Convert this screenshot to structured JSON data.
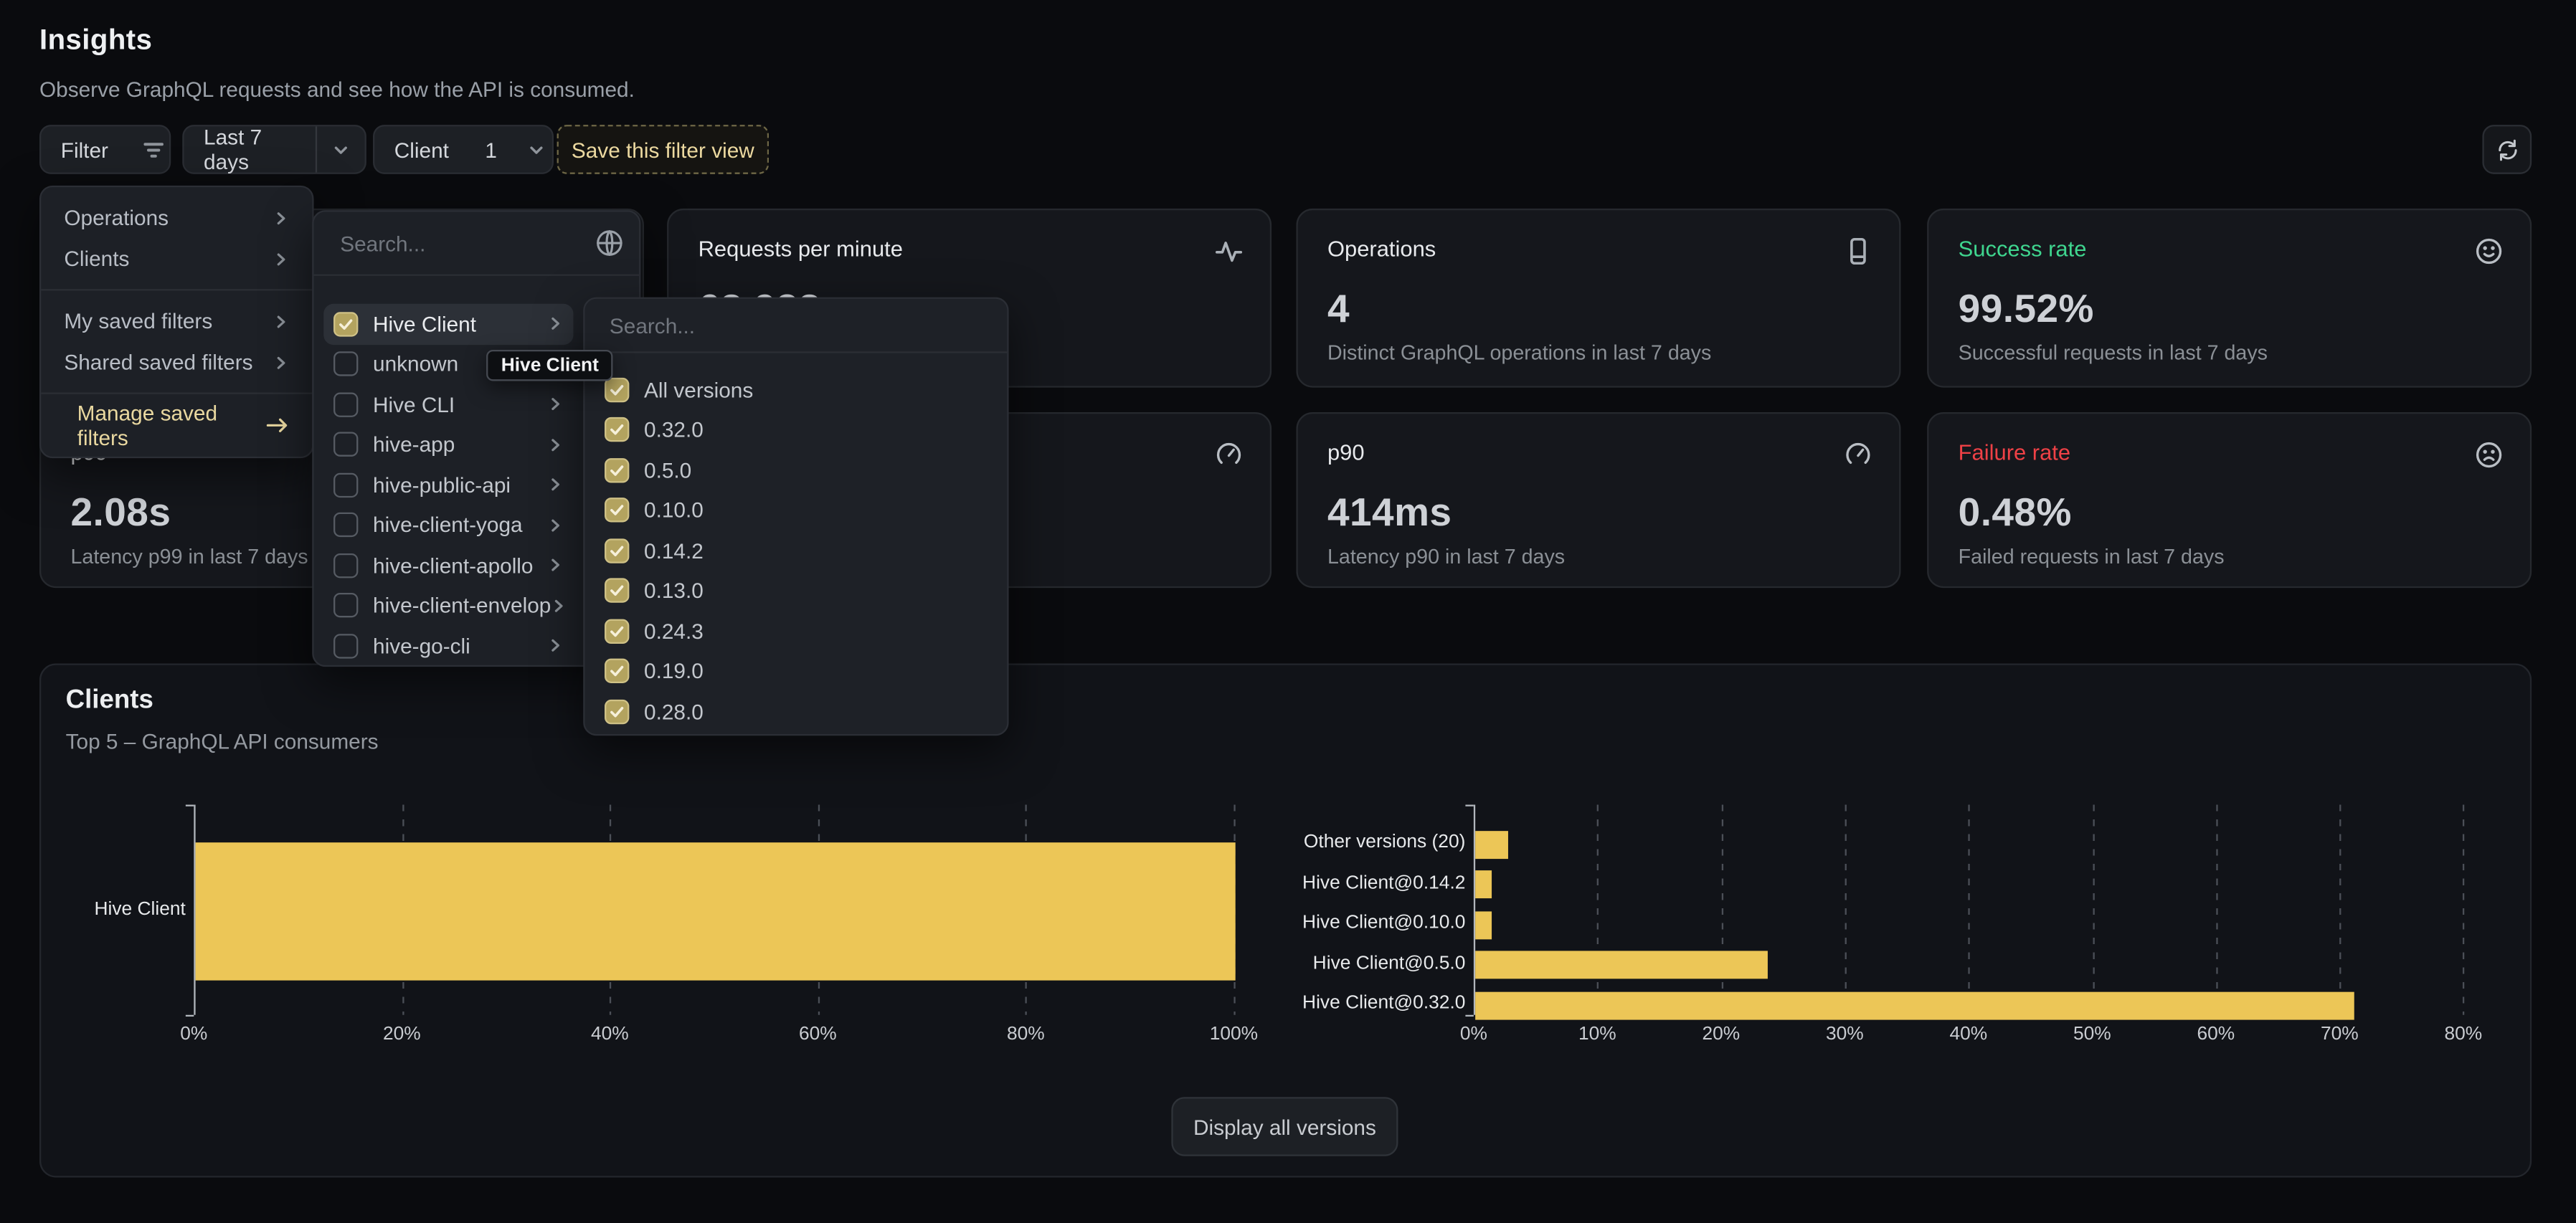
{
  "page": {
    "title": "Insights",
    "subtitle": "Observe GraphQL requests and see how the API is consumed."
  },
  "toolbar": {
    "filter_label": "Filter",
    "date_range_label": "Last 7 days",
    "client_label": "Client",
    "client_count": "1",
    "save_button_label": "Save this filter view"
  },
  "filter_menu": {
    "sections": [
      {
        "items": [
          {
            "label": "Operations",
            "chevron": true
          },
          {
            "label": "Clients",
            "chevron": true
          }
        ]
      },
      {
        "items": [
          {
            "label": "My saved filters",
            "chevron": true
          },
          {
            "label": "Shared saved filters",
            "chevron": true
          }
        ]
      },
      {
        "items": [
          {
            "label": "Manage saved filters",
            "arrow": true,
            "accent": true
          }
        ]
      }
    ]
  },
  "clients_menu": {
    "search_placeholder": "Search...",
    "items": [
      {
        "label": "Hive Client",
        "checked": true,
        "active": true,
        "chevron": true
      },
      {
        "label": "unknown",
        "checked": false,
        "chevron": false
      },
      {
        "label": "Hive CLI",
        "checked": false,
        "chevron": true
      },
      {
        "label": "hive-app",
        "checked": false,
        "chevron": true
      },
      {
        "label": "hive-public-api",
        "checked": false,
        "chevron": true
      },
      {
        "label": "hive-client-yoga",
        "checked": false,
        "chevron": true
      },
      {
        "label": "hive-client-apollo",
        "checked": false,
        "chevron": true
      },
      {
        "label": "hive-client-envelop",
        "checked": false,
        "chevron": true
      },
      {
        "label": "hive-go-cli",
        "checked": false,
        "chevron": true
      }
    ],
    "tooltip": "Hive Client"
  },
  "versions_menu": {
    "search_placeholder": "Search...",
    "items": [
      {
        "label": "All versions",
        "checked": true
      },
      {
        "label": "0.32.0",
        "checked": true
      },
      {
        "label": "0.5.0",
        "checked": true
      },
      {
        "label": "0.10.0",
        "checked": true
      },
      {
        "label": "0.14.2",
        "checked": true
      },
      {
        "label": "0.13.0",
        "checked": true
      },
      {
        "label": "0.24.3",
        "checked": true
      },
      {
        "label": "0.19.0",
        "checked": true
      },
      {
        "label": "0.28.0",
        "checked": true
      }
    ]
  },
  "stat_cards": {
    "requests_per_minute": {
      "title": "Requests per minute",
      "value": "68,938"
    },
    "operations": {
      "title": "Operations",
      "value": "4",
      "subtitle": "Distinct GraphQL operations in last 7 days"
    },
    "success_rate": {
      "title": "Success rate",
      "value": "99.52%",
      "subtitle": "Successful requests in last 7 days"
    },
    "p99": {
      "title": "p99",
      "value": "2.08s",
      "subtitle": "Latency p99 in last 7 days"
    },
    "p90": {
      "title": "p90",
      "value": "414ms",
      "subtitle": "Latency p90 in last 7 days"
    },
    "failure_rate": {
      "title": "Failure rate",
      "value": "0.48%",
      "subtitle": "Failed requests in last 7 days"
    }
  },
  "colors": {
    "accent_yellow": "#ecc657",
    "success": "#3fd68f",
    "failure": "#ef4146"
  },
  "clients_panel": {
    "title": "Clients",
    "subtitle": "Top 5 – GraphQL API consumers",
    "display_button": "Display all versions"
  },
  "chart_data": [
    {
      "type": "bar",
      "orientation": "horizontal",
      "categories": [
        "Hive Client"
      ],
      "values": [
        100
      ],
      "unit": "%",
      "xlim": [
        0,
        100
      ],
      "xticks": [
        0,
        20,
        40,
        60,
        80,
        100
      ],
      "grid": "dashed-vertical",
      "bar_color": "#ecc657",
      "legend": "none"
    },
    {
      "type": "bar",
      "orientation": "horizontal",
      "categories": [
        "Other versions (20)",
        "Hive Client@0.14.2",
        "Hive Client@0.10.0",
        "Hive Client@0.5.0",
        "Hive Client@0.32.0"
      ],
      "values": [
        2.6,
        1.3,
        1.3,
        23.7,
        71
      ],
      "unit": "%",
      "xlim": [
        0,
        83
      ],
      "xticks": [
        0,
        10,
        20,
        30,
        40,
        50,
        60,
        70,
        80
      ],
      "grid": "dashed-vertical",
      "bar_color": "#ecc657",
      "legend": "none"
    }
  ]
}
